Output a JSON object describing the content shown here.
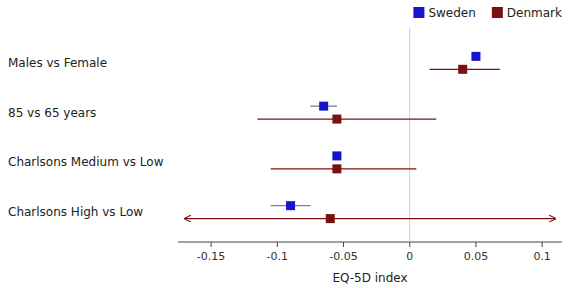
{
  "chart_data": {
    "type": "forest",
    "orientation": "horizontal",
    "categories": [
      "Males vs Female",
      "85 vs 65 years",
      "Charlsons Medium vs Low",
      "Charlsons High vs Low"
    ],
    "series": [
      {
        "name": "Sweden",
        "color": "#1515CC",
        "ci_color": "gray",
        "values": [
          0.05,
          -0.065,
          -0.055,
          -0.09
        ],
        "ci_low": [
          null,
          -0.075,
          null,
          -0.105
        ],
        "ci_high": [
          null,
          -0.055,
          null,
          -0.075
        ]
      },
      {
        "name": "Denmark",
        "color": "#7B1010",
        "values": [
          0.04,
          -0.055,
          -0.055,
          -0.06
        ],
        "ci_low": [
          0.015,
          -0.115,
          -0.105,
          -0.17
        ],
        "ci_high": [
          0.068,
          0.02,
          0.005,
          0.11
        ],
        "ci_arrow": [
          false,
          false,
          false,
          true
        ]
      }
    ],
    "xlim": [
      -0.175,
      0.115
    ],
    "xticks": [
      -0.15,
      -0.1,
      -0.05,
      0,
      0.05,
      0.1
    ],
    "xlabel": "EQ-5D index",
    "reference_line": 0,
    "legend": "upper right",
    "grid": false
  }
}
